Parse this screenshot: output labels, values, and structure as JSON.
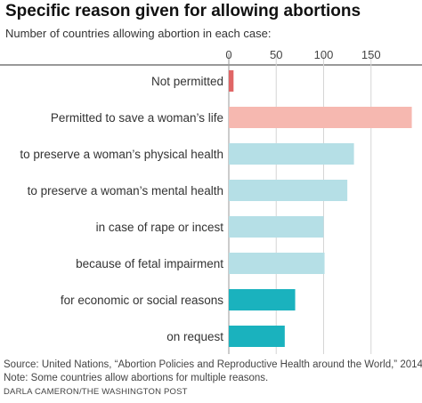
{
  "title": "Specific reason given for allowing abortions",
  "subtitle": "Number of countries allowing abortion in each case:",
  "chart_data": {
    "type": "bar",
    "orientation": "horizontal",
    "title": "Specific reason given for allowing abortions",
    "subtitle": "Number of countries allowing abortion in each case:",
    "categories": [
      "Not permitted",
      "Permitted to save a woman’s life",
      "to preserve a woman’s physical health",
      "to preserve a woman’s mental health",
      "in case of rape or incest",
      "because of fetal impairment",
      "for economic or social reasons",
      "on request"
    ],
    "values": [
      5,
      193,
      132,
      125,
      100,
      101,
      70,
      59
    ],
    "colors": [
      "#e06666",
      "#f6b8b0",
      "#b5dfe6",
      "#b5dfe6",
      "#b5dfe6",
      "#b5dfe6",
      "#1ab2be",
      "#1ab2be"
    ],
    "xticks": [
      0,
      50,
      100,
      150
    ],
    "xlim": [
      0,
      193
    ],
    "grid": true
  },
  "source": "Source: United Nations, “Abortion Policies and Reproductive Health around the World,” 2014",
  "note": "Note: Some countries allow abortions for multiple reasons.",
  "credit": "DARLA CAMERON/THE WASHINGTON POST"
}
